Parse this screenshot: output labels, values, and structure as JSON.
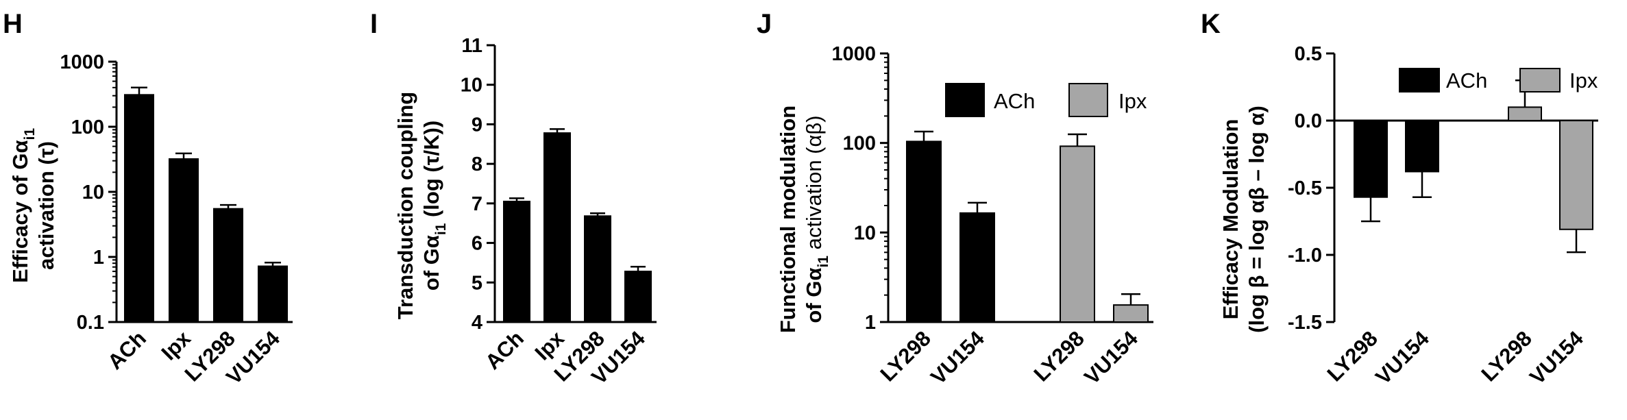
{
  "colors": {
    "ach": "#000000",
    "ipx": "#a6a6a6",
    "axis": "#000000",
    "background": "#ffffff"
  },
  "chart_data": [
    {
      "letter": "H",
      "type": "bar",
      "yscale": "log",
      "ylim": [
        0.1,
        1000
      ],
      "yticks": [
        "0.1",
        "1",
        "10",
        "100",
        "1000"
      ],
      "ylabel": [
        "Efficacy of Gα",
        "i1",
        "activation (τ)"
      ],
      "categories": [
        "ACh",
        "Ipx",
        "LY298",
        "VU154"
      ],
      "values": [
        310,
        32,
        5.5,
        0.72
      ],
      "errors": [
        90,
        7,
        0.8,
        0.1
      ],
      "bar_colors": [
        "#000000",
        "#000000",
        "#000000",
        "#000000"
      ],
      "grid": false,
      "legend": null
    },
    {
      "letter": "I",
      "type": "bar",
      "yscale": "linear",
      "ylim": [
        4,
        11
      ],
      "yticks": [
        "4",
        "5",
        "6",
        "7",
        "8",
        "9",
        "10",
        "11"
      ],
      "ylabel": [
        "Transduction coupling",
        "of Gα",
        "i1",
        " (log (τ/K))"
      ],
      "categories": [
        "ACh",
        "Ipx",
        "LY298",
        "VU154"
      ],
      "values": [
        7.05,
        8.78,
        6.68,
        5.28
      ],
      "errors": [
        0.08,
        0.1,
        0.07,
        0.12
      ],
      "bar_colors": [
        "#000000",
        "#000000",
        "#000000",
        "#000000"
      ],
      "grid": false,
      "legend": null
    },
    {
      "letter": "J",
      "type": "bar",
      "yscale": "log",
      "ylim": [
        1,
        1000
      ],
      "yticks": [
        "1",
        "10",
        "100",
        "1000"
      ],
      "ylabel": [
        "Functional modulation",
        "of Gα",
        "i1",
        " activation (αβ)"
      ],
      "categories": [
        "LY298",
        "VU154",
        "LY298",
        "VU154"
      ],
      "values": [
        104,
        16.5,
        92,
        1.55
      ],
      "errors": [
        30,
        5,
        33,
        0.5
      ],
      "bar_colors": [
        "#000000",
        "#000000",
        "#a6a6a6",
        "#a6a6a6"
      ],
      "grid": false,
      "legend": {
        "placement": "top",
        "entries": [
          "ACh",
          "Ipx"
        ]
      }
    },
    {
      "letter": "K",
      "type": "bar",
      "yscale": "linear",
      "ylim": [
        -1.5,
        0.5
      ],
      "yticks": [
        "-1.5",
        "-1.0",
        "-0.5",
        "0.0",
        "0.5"
      ],
      "ylabel": [
        "Efficacy Modulation",
        "(log β = log αβ – log α)"
      ],
      "categories": [
        "LY298",
        "VU154",
        "LY298",
        "VU154"
      ],
      "values": [
        -0.57,
        -0.38,
        0.1,
        -0.81
      ],
      "errors": [
        0.18,
        0.19,
        0.2,
        0.17
      ],
      "bar_colors": [
        "#000000",
        "#000000",
        "#a6a6a6",
        "#a6a6a6"
      ],
      "grid": false,
      "legend": {
        "placement": "top",
        "entries": [
          "ACh",
          "Ipx"
        ]
      }
    }
  ]
}
